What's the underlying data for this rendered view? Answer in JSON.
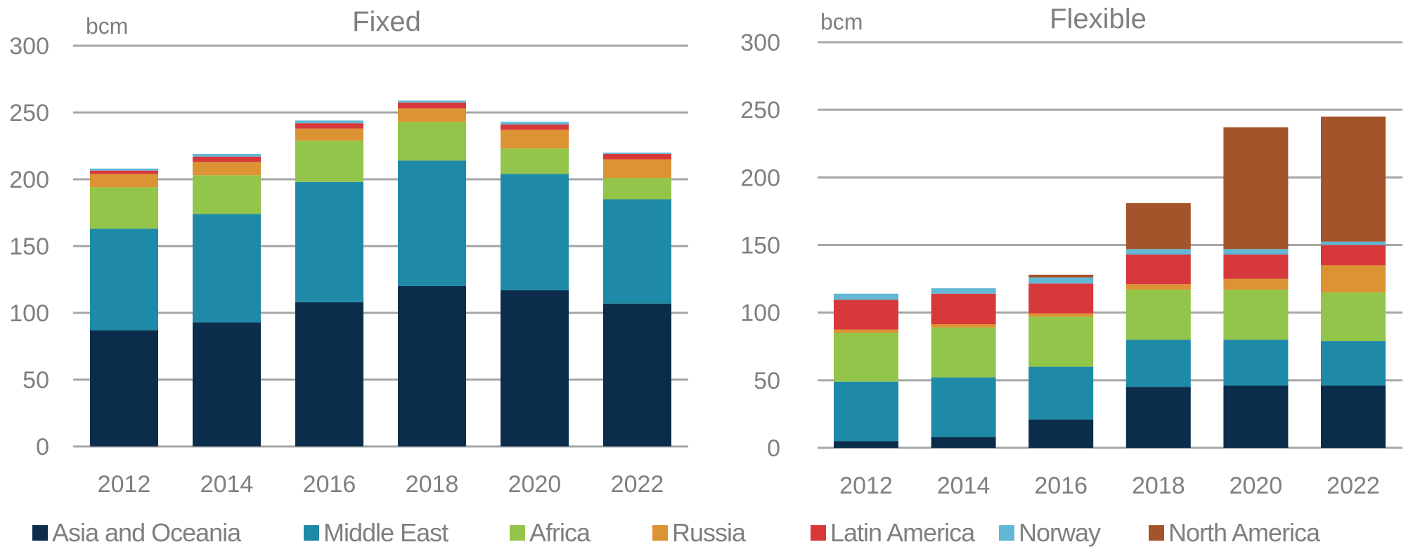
{
  "chart_data": [
    {
      "type": "bar",
      "stacked": true,
      "title": "Fixed",
      "ylabel": "bcm",
      "xlabel": "",
      "ylim": [
        0,
        300
      ],
      "yticks": [
        0,
        50,
        100,
        150,
        200,
        250,
        300
      ],
      "grid": true,
      "categories": [
        "2012",
        "2014",
        "2016",
        "2018",
        "2020",
        "2022"
      ],
      "series": [
        {
          "name": "Asia and Oceania",
          "values": [
            87,
            93,
            108,
            120,
            117,
            107
          ]
        },
        {
          "name": "Middle East",
          "values": [
            76,
            81,
            90,
            94,
            87,
            78
          ]
        },
        {
          "name": "Africa",
          "values": [
            31,
            29,
            31,
            29,
            19,
            16
          ]
        },
        {
          "name": "Russia",
          "values": [
            10,
            10,
            9,
            10,
            14,
            14
          ]
        },
        {
          "name": "Latin America",
          "values": [
            2.5,
            4,
            4,
            4.5,
            4,
            4
          ]
        },
        {
          "name": "Norway",
          "values": [
            1.5,
            2,
            2,
            1.5,
            2,
            1
          ]
        },
        {
          "name": "North America",
          "values": [
            0,
            0,
            0,
            0,
            0,
            0
          ]
        }
      ]
    },
    {
      "type": "bar",
      "stacked": true,
      "title": "Flexible",
      "ylabel": "bcm",
      "xlabel": "",
      "ylim": [
        0,
        300
      ],
      "yticks": [
        0,
        50,
        100,
        150,
        200,
        250,
        300
      ],
      "grid": true,
      "categories": [
        "2012",
        "2014",
        "2016",
        "2018",
        "2020",
        "2022"
      ],
      "series": [
        {
          "name": "Asia and Oceania",
          "values": [
            5,
            8,
            21,
            45,
            46,
            46
          ]
        },
        {
          "name": "Middle East",
          "values": [
            44,
            44,
            39,
            35,
            34,
            33
          ]
        },
        {
          "name": "Africa",
          "values": [
            36,
            37,
            37,
            37,
            37,
            36
          ]
        },
        {
          "name": "Russia",
          "values": [
            2.5,
            2.5,
            2.5,
            4,
            8,
            20
          ]
        },
        {
          "name": "Latin America",
          "values": [
            22,
            22.5,
            22,
            22,
            18,
            15
          ]
        },
        {
          "name": "Norway",
          "values": [
            4.5,
            4,
            4.5,
            4,
            4,
            2.5
          ]
        },
        {
          "name": "North America",
          "values": [
            0,
            0,
            2,
            34,
            90,
            92.5
          ]
        }
      ]
    }
  ],
  "legend": {
    "position": "bottom",
    "items": [
      {
        "label": "Asia and Oceania",
        "color": "#0b2d4b"
      },
      {
        "label": "Middle East",
        "color": "#1f8aa8"
      },
      {
        "label": "Africa",
        "color": "#92c54a"
      },
      {
        "label": "Russia",
        "color": "#dc9333"
      },
      {
        "label": "Latin America",
        "color": "#d7393b"
      },
      {
        "label": "Norway",
        "color": "#62b7d4"
      },
      {
        "label": "North America",
        "color": "#a4542b"
      }
    ]
  },
  "colors": {
    "text": "#7f7f7f",
    "gridline": "#a6a6a6"
  }
}
